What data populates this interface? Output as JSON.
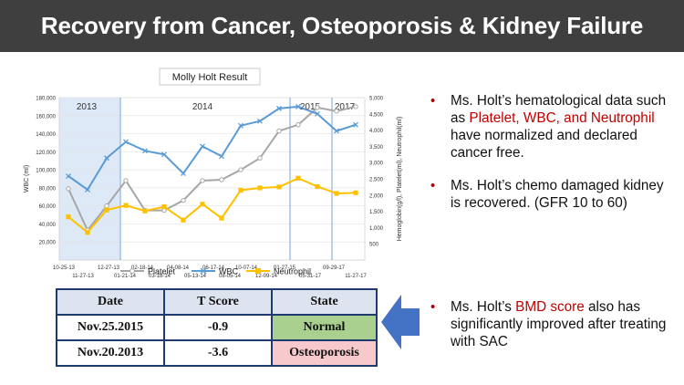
{
  "title": "Recovery from Cancer, Osteoporosis & Kidney Failure",
  "chart_data": {
    "type": "line",
    "title": "Molly Holt  Result",
    "ylabel": "WBC (ml)",
    "y2label": "Hemoglobin(g/l), Platelet(ml), Neutrophil(ml)",
    "ylim": [
      0,
      180000
    ],
    "y2lim": [
      0,
      5000
    ],
    "yticks": [
      "20,000",
      "40,000",
      "60,000",
      "80,000",
      "100,000",
      "120,000",
      "140,000",
      "160,000",
      "180,000"
    ],
    "y2ticks": [
      "500",
      "1,000",
      "1,500",
      "2,000",
      "2,500",
      "3,000",
      "3,500",
      "4,000",
      "4,500",
      "5,000"
    ],
    "xticks_top": [
      "10-25-13",
      "12-27-13",
      "02-18-14",
      "04-08-14",
      "06-17-14",
      "10-07-14",
      "01-27-15",
      "09-29-17"
    ],
    "xticks_bottom": [
      "11-27-13",
      "01-21-14",
      "03-18-14",
      "05-13-14",
      "08-05-14",
      "12-09-14",
      "05-31-17",
      "11-27-17"
    ],
    "year_labels": [
      "2013",
      "2014",
      "2015",
      "2017"
    ],
    "colors": {
      "platelet": "#a6a6a6",
      "wbc": "#5b9bd5",
      "neutrophil": "#ffc000",
      "shade": "#dde9f7",
      "vline": "#8eb4e3"
    },
    "series": [
      {
        "name": "Platelet",
        "axis": "y",
        "values": [
          79000,
          33000,
          60000,
          88000,
          55000,
          55000,
          66000,
          88000,
          89000,
          100000,
          113000,
          143000,
          150000,
          169000,
          165000,
          170000
        ]
      },
      {
        "name": "WBC",
        "axis": "y",
        "values": [
          93000,
          78000,
          113000,
          131000,
          121000,
          117000,
          96000,
          126000,
          115000,
          149000,
          154000,
          168000,
          170000,
          162000,
          143000,
          150000
        ]
      },
      {
        "name": "Neutrophil",
        "axis": "y2",
        "values": [
          1330,
          850,
          1540,
          1680,
          1510,
          1640,
          1230,
          1720,
          1290,
          2150,
          2220,
          2250,
          2520,
          2260,
          2050,
          2070
        ]
      }
    ]
  },
  "bullets": [
    {
      "parts": [
        {
          "text": "Ms. Holt’s hematological data such as ",
          "red": false
        },
        {
          "text": "Platelet, WBC, and Neutrophil",
          "red": true
        },
        {
          "text": " have normalized and declared cancer free.",
          "red": false
        }
      ]
    },
    {
      "parts": [
        {
          "text": "Ms. Holt’s chemo damaged kidney is recovered. (GFR 10 to 60)",
          "red": false
        }
      ]
    },
    {
      "parts": [
        {
          "text": "Ms. Holt’s ",
          "red": false
        },
        {
          "text": "BMD score",
          "red": true
        },
        {
          "text": " also has significantly improved after treating with SAC",
          "red": false
        }
      ]
    }
  ],
  "bmd_table": {
    "headers": [
      "Date",
      "T Score",
      "State"
    ],
    "rows": [
      {
        "date": "Nov.25.2015",
        "score": "-0.9",
        "state": "Normal"
      },
      {
        "date": "Nov.20.2013",
        "score": "-3.6",
        "state": "Osteoporosis"
      }
    ]
  },
  "arrow_color": "#4472c4"
}
